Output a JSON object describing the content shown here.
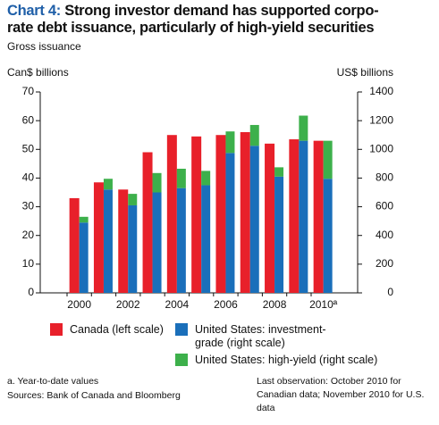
{
  "chart_data": {
    "type": "bar",
    "title_label": "Chart 4:",
    "title": [
      "Strong investor demand has supported corpo-",
      "rate debt issuance, particularly of high-yield securities"
    ],
    "subtitle": "Gross issuance",
    "ylabel": "Can$ billions",
    "y2label": "US$ billions",
    "categories": [
      "2000",
      null,
      "2002",
      null,
      "2004",
      null,
      "2006",
      null,
      "2008",
      null,
      "2010ª"
    ],
    "series": [
      {
        "name": "Canada (left scale)",
        "color": "#e8202a",
        "values": [
          33,
          38.5,
          36,
          49,
          55,
          54.5,
          55,
          56,
          52,
          53.5,
          53
        ]
      },
      {
        "name": "United States: investment-grade (right scale)",
        "color": "#1a6fba",
        "axis": "y2",
        "values": [
          490,
          720,
          610,
          700,
          730,
          750,
          975,
          1025,
          810,
          1060,
          795
        ]
      },
      {
        "name": "United States: high-yield (right scale)",
        "color": "#3db04b",
        "axis": "y2",
        "stack": true,
        "values": [
          40,
          75,
          80,
          135,
          135,
          100,
          150,
          145,
          65,
          175,
          265
        ]
      }
    ],
    "ylim": [
      0,
      70
    ],
    "yticks": [
      0,
      10,
      20,
      30,
      40,
      50,
      60,
      70
    ],
    "y2lim": [
      0,
      1400
    ],
    "y2ticks": [
      0,
      200,
      400,
      600,
      800,
      1000,
      1200,
      1400
    ],
    "notes": [
      "a. Year-to-date values",
      "Sources: Bank of Canada and Bloomberg"
    ],
    "last_observation": "Last observation: October 2010 for Canadian data; November 2010 for U.S. data"
  }
}
